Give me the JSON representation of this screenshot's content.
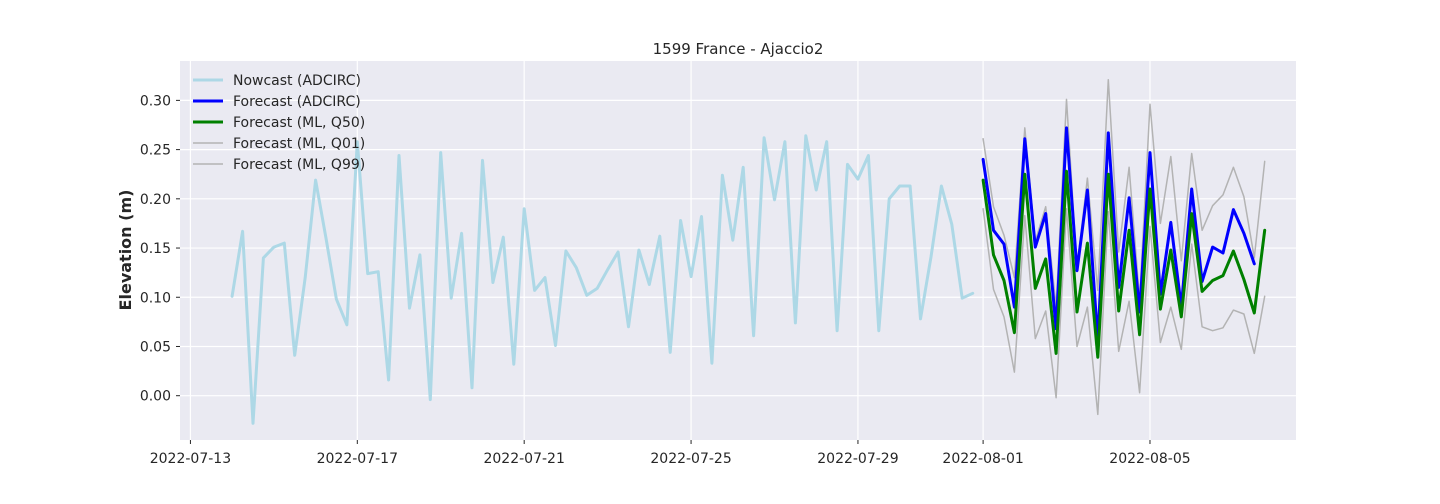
{
  "chart_data": {
    "type": "line",
    "title": "1599 France - Ajaccio2",
    "xlabel": "",
    "ylabel": "Elevation (m)",
    "xlim": [
      "2022-07-12T18:00",
      "2022-08-08T12:00"
    ],
    "ylim": [
      -0.045,
      0.34
    ],
    "grid": true,
    "legend_position": "top-left",
    "x_ticks": [
      "2022-07-13",
      "2022-07-17",
      "2022-07-21",
      "2022-07-25",
      "2022-07-29",
      "2022-08-01",
      "2022-08-05"
    ],
    "y_ticks": [
      0.0,
      0.05,
      0.1,
      0.15,
      0.2,
      0.25,
      0.3
    ],
    "y_tick_labels": [
      "0.00",
      "0.05",
      "0.10",
      "0.15",
      "0.20",
      "0.25",
      "0.30"
    ],
    "series": [
      {
        "name": "Nowcast (ADCIRC)",
        "color": "#add8e6",
        "width": 3,
        "x": [
          "2022-07-14T00:00",
          "2022-07-14T06:00",
          "2022-07-14T12:00",
          "2022-07-14T18:00",
          "2022-07-15T00:00",
          "2022-07-15T06:00",
          "2022-07-15T12:00",
          "2022-07-15T18:00",
          "2022-07-16T00:00",
          "2022-07-16T06:00",
          "2022-07-16T12:00",
          "2022-07-16T18:00",
          "2022-07-17T00:00",
          "2022-07-17T06:00",
          "2022-07-17T12:00",
          "2022-07-17T18:00",
          "2022-07-18T00:00",
          "2022-07-18T06:00",
          "2022-07-18T12:00",
          "2022-07-18T18:00",
          "2022-07-19T00:00",
          "2022-07-19T06:00",
          "2022-07-19T12:00",
          "2022-07-19T18:00",
          "2022-07-20T00:00",
          "2022-07-20T06:00",
          "2022-07-20T12:00",
          "2022-07-20T18:00",
          "2022-07-21T00:00",
          "2022-07-21T06:00",
          "2022-07-21T12:00",
          "2022-07-21T18:00",
          "2022-07-22T00:00",
          "2022-07-22T06:00",
          "2022-07-22T12:00",
          "2022-07-22T18:00",
          "2022-07-23T00:00",
          "2022-07-23T06:00",
          "2022-07-23T12:00",
          "2022-07-23T18:00",
          "2022-07-24T00:00",
          "2022-07-24T06:00",
          "2022-07-24T12:00",
          "2022-07-24T18:00",
          "2022-07-25T00:00",
          "2022-07-25T06:00",
          "2022-07-25T12:00",
          "2022-07-25T18:00",
          "2022-07-26T00:00",
          "2022-07-26T06:00",
          "2022-07-26T12:00",
          "2022-07-26T18:00",
          "2022-07-27T00:00",
          "2022-07-27T06:00",
          "2022-07-27T12:00",
          "2022-07-27T18:00",
          "2022-07-28T00:00",
          "2022-07-28T06:00",
          "2022-07-28T12:00",
          "2022-07-28T18:00",
          "2022-07-29T00:00",
          "2022-07-29T06:00",
          "2022-07-29T12:00",
          "2022-07-29T18:00",
          "2022-07-30T00:00",
          "2022-07-30T06:00",
          "2022-07-30T12:00",
          "2022-07-30T18:00",
          "2022-07-31T00:00",
          "2022-07-31T06:00",
          "2022-07-31T12:00",
          "2022-07-31T18:00"
        ],
        "y": [
          0.101,
          0.167,
          -0.028,
          0.14,
          0.151,
          0.155,
          0.041,
          0.12,
          0.219,
          0.16,
          0.098,
          0.072,
          0.258,
          0.124,
          0.126,
          0.016,
          0.244,
          0.089,
          0.143,
          -0.004,
          0.247,
          0.099,
          0.165,
          0.008,
          0.239,
          0.115,
          0.161,
          0.032,
          0.19,
          0.107,
          0.12,
          0.051,
          0.147,
          0.13,
          0.102,
          0.109,
          0.128,
          0.146,
          0.07,
          0.148,
          0.113,
          0.162,
          0.044,
          0.178,
          0.121,
          0.182,
          0.033,
          0.224,
          0.158,
          0.232,
          0.061,
          0.262,
          0.199,
          0.258,
          0.074,
          0.264,
          0.209,
          0.258,
          0.066,
          0.235,
          0.22,
          0.244,
          0.066,
          0.2,
          0.213,
          0.213,
          0.078,
          0.141,
          0.213,
          0.174,
          0.099,
          0.104
        ]
      },
      {
        "name": "Forecast (ADCIRC)",
        "color": "#0000ff",
        "width": 3,
        "x": [
          "2022-08-01T00:00",
          "2022-08-01T06:00",
          "2022-08-01T12:00",
          "2022-08-01T18:00",
          "2022-08-02T00:00",
          "2022-08-02T06:00",
          "2022-08-02T12:00",
          "2022-08-02T18:00",
          "2022-08-03T00:00",
          "2022-08-03T06:00",
          "2022-08-03T12:00",
          "2022-08-03T18:00",
          "2022-08-04T00:00",
          "2022-08-04T06:00",
          "2022-08-04T12:00",
          "2022-08-04T18:00",
          "2022-08-05T00:00",
          "2022-08-05T06:00",
          "2022-08-05T12:00",
          "2022-08-05T18:00",
          "2022-08-06T00:00",
          "2022-08-06T06:00",
          "2022-08-06T12:00",
          "2022-08-06T18:00",
          "2022-08-07T00:00",
          "2022-08-07T06:00",
          "2022-08-07T12:00"
        ],
        "y": [
          0.24,
          0.168,
          0.154,
          0.09,
          0.261,
          0.151,
          0.185,
          0.068,
          0.272,
          0.127,
          0.209,
          0.056,
          0.267,
          0.11,
          0.201,
          0.085,
          0.247,
          0.103,
          0.176,
          0.09,
          0.21,
          0.116,
          0.151,
          0.145,
          0.189,
          0.165,
          0.134
        ]
      },
      {
        "name": "Forecast (ML, Q50)",
        "color": "#008000",
        "width": 3,
        "x": [
          "2022-08-01T00:00",
          "2022-08-01T06:00",
          "2022-08-01T12:00",
          "2022-08-01T18:00",
          "2022-08-02T00:00",
          "2022-08-02T06:00",
          "2022-08-02T12:00",
          "2022-08-02T18:00",
          "2022-08-03T00:00",
          "2022-08-03T06:00",
          "2022-08-03T12:00",
          "2022-08-03T18:00",
          "2022-08-04T00:00",
          "2022-08-04T06:00",
          "2022-08-04T12:00",
          "2022-08-04T18:00",
          "2022-08-05T00:00",
          "2022-08-05T06:00",
          "2022-08-05T12:00",
          "2022-08-05T18:00",
          "2022-08-06T00:00",
          "2022-08-06T06:00",
          "2022-08-06T12:00",
          "2022-08-06T18:00",
          "2022-08-07T00:00",
          "2022-08-07T06:00",
          "2022-08-07T12:00",
          "2022-08-07T18:00"
        ],
        "y": [
          0.219,
          0.143,
          0.117,
          0.064,
          0.225,
          0.109,
          0.139,
          0.043,
          0.228,
          0.085,
          0.155,
          0.039,
          0.225,
          0.086,
          0.168,
          0.062,
          0.21,
          0.088,
          0.148,
          0.08,
          0.185,
          0.106,
          0.117,
          0.122,
          0.147,
          0.118,
          0.084,
          0.168
        ]
      },
      {
        "name": "Forecast (ML, Q01)",
        "color": "#b3b3b3",
        "width": 1.5,
        "x": [
          "2022-08-01T00:00",
          "2022-08-01T06:00",
          "2022-08-01T12:00",
          "2022-08-01T18:00",
          "2022-08-02T00:00",
          "2022-08-02T06:00",
          "2022-08-02T12:00",
          "2022-08-02T18:00",
          "2022-08-03T00:00",
          "2022-08-03T06:00",
          "2022-08-03T12:00",
          "2022-08-03T18:00",
          "2022-08-04T00:00",
          "2022-08-04T06:00",
          "2022-08-04T12:00",
          "2022-08-04T18:00",
          "2022-08-05T00:00",
          "2022-08-05T06:00",
          "2022-08-05T12:00",
          "2022-08-05T18:00",
          "2022-08-06T00:00",
          "2022-08-06T06:00",
          "2022-08-06T12:00",
          "2022-08-06T18:00",
          "2022-08-07T00:00",
          "2022-08-07T06:00",
          "2022-08-07T12:00",
          "2022-08-07T18:00"
        ],
        "y": [
          0.19,
          0.108,
          0.08,
          0.024,
          0.183,
          0.058,
          0.086,
          -0.002,
          0.19,
          0.05,
          0.09,
          -0.019,
          0.187,
          0.045,
          0.096,
          0.003,
          0.172,
          0.054,
          0.09,
          0.047,
          0.154,
          0.07,
          0.066,
          0.069,
          0.087,
          0.083,
          0.043,
          0.101
        ]
      },
      {
        "name": "Forecast (ML, Q99)",
        "color": "#b3b3b3",
        "width": 1.5,
        "x": [
          "2022-08-01T00:00",
          "2022-08-01T06:00",
          "2022-08-01T12:00",
          "2022-08-01T18:00",
          "2022-08-02T00:00",
          "2022-08-02T06:00",
          "2022-08-02T12:00",
          "2022-08-02T18:00",
          "2022-08-03T00:00",
          "2022-08-03T06:00",
          "2022-08-03T12:00",
          "2022-08-03T18:00",
          "2022-08-04T00:00",
          "2022-08-04T06:00",
          "2022-08-04T12:00",
          "2022-08-04T18:00",
          "2022-08-05T00:00",
          "2022-08-05T06:00",
          "2022-08-05T12:00",
          "2022-08-05T18:00",
          "2022-08-06T00:00",
          "2022-08-06T06:00",
          "2022-08-06T12:00",
          "2022-08-06T18:00",
          "2022-08-07T00:00",
          "2022-08-07T06:00",
          "2022-08-07T12:00",
          "2022-08-07T18:00"
        ],
        "y": [
          0.261,
          0.192,
          0.163,
          0.12,
          0.272,
          0.157,
          0.192,
          0.09,
          0.301,
          0.13,
          0.221,
          0.107,
          0.321,
          0.146,
          0.232,
          0.097,
          0.296,
          0.175,
          0.243,
          0.137,
          0.246,
          0.168,
          0.193,
          0.204,
          0.232,
          0.202,
          0.14,
          0.238
        ]
      }
    ]
  }
}
